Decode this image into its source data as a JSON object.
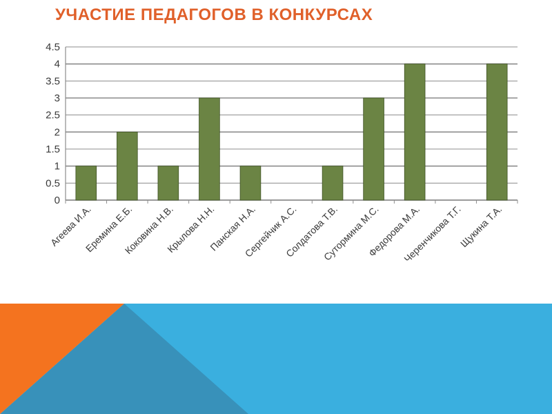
{
  "slide": {
    "title": "УЧАСТИЕ ПЕДАГОГОВ В КОНКУРСАХ"
  },
  "colors": {
    "title": "#E0602A",
    "bar": "#6B8444",
    "bar_border": "#3E5224",
    "grid": "#8C8C8C",
    "axis_text": "#3A3A3A",
    "decor_orange": "#F4731F",
    "decor_blue_light": "#3AAFDF",
    "decor_blue_dark": "#3891BA"
  },
  "chart_data": {
    "type": "bar",
    "categories": [
      "Агеева И.А.",
      "Еремина Е.Б.",
      "Коковина Н.В.",
      "Крылова Н.Н.",
      "Панская Н.А.",
      "Сергейчик А.С.",
      "Солдатова Т.В.",
      "Сутормина М.С.",
      "Федорова М.А.",
      "Черенчикова Т.Г.",
      "Щукина Т.А."
    ],
    "values": [
      1,
      2,
      1,
      3,
      1,
      0,
      1,
      3,
      4,
      0,
      4
    ],
    "yticks": [
      "0",
      "0.5",
      "1",
      "1.5",
      "2",
      "2.5",
      "3",
      "3.5",
      "4",
      "4.5"
    ],
    "ylim": [
      0,
      4.5
    ],
    "grid": true,
    "legend": "none",
    "title": "",
    "xlabel": "",
    "ylabel": ""
  }
}
